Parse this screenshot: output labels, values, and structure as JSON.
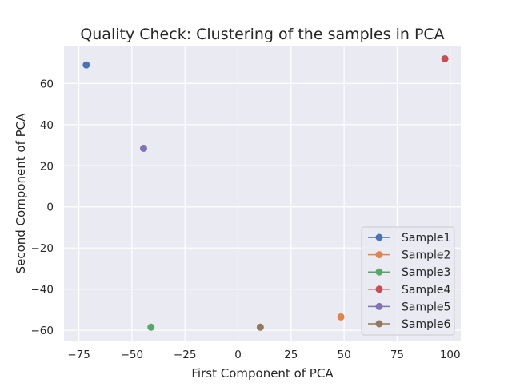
{
  "chart_data": {
    "type": "scatter",
    "title": "Quality Check: Clustering of the samples in PCA",
    "xlabel": "First Component of PCA",
    "ylabel": "Second Component of PCA",
    "xlim": [
      -82,
      105
    ],
    "ylim": [
      -65,
      78
    ],
    "xticks": [
      -75,
      -50,
      -25,
      0,
      25,
      50,
      75,
      100
    ],
    "yticks": [
      -60,
      -40,
      -20,
      0,
      20,
      40,
      60
    ],
    "xtick_labels": [
      "−75",
      "−50",
      "−25",
      "0",
      "25",
      "50",
      "75",
      "100"
    ],
    "ytick_labels": [
      "−60",
      "−40",
      "−20",
      "0",
      "20",
      "40",
      "60"
    ],
    "grid": true,
    "background": "#eaeaf2",
    "legend_position": "lower-right",
    "series": [
      {
        "name": "Sample1",
        "color": "#4c72b0",
        "x": -71.5,
        "y": 69.0
      },
      {
        "name": "Sample2",
        "color": "#dd8452",
        "x": 48.5,
        "y": -53.5
      },
      {
        "name": "Sample3",
        "color": "#55a868",
        "x": -41.0,
        "y": -58.5
      },
      {
        "name": "Sample4",
        "color": "#c44e52",
        "x": 97.5,
        "y": 72.0
      },
      {
        "name": "Sample5",
        "color": "#8172b3",
        "x": -44.5,
        "y": 28.5
      },
      {
        "name": "Sample6",
        "color": "#937860",
        "x": 10.5,
        "y": -58.5
      }
    ]
  }
}
